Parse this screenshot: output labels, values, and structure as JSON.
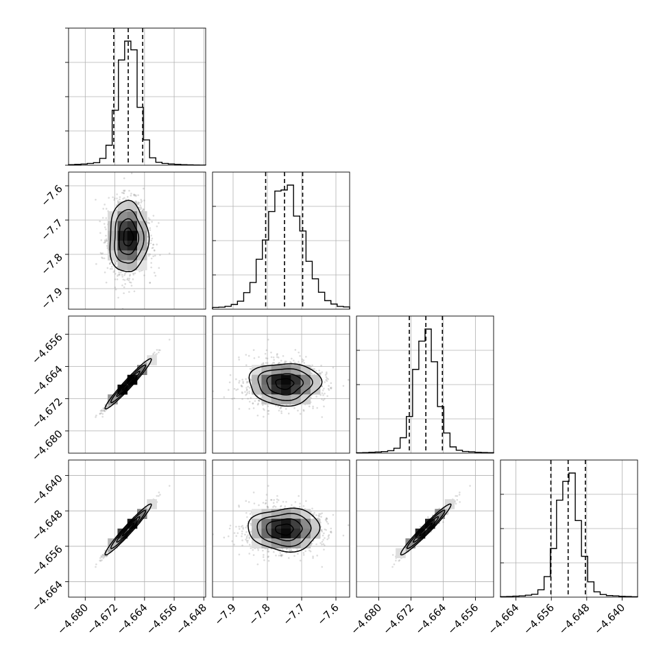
{
  "figure": {
    "background": "#ffffff",
    "line_color": "#000000",
    "grid_color": "#b0b0b0",
    "density_color": "#000000",
    "quantile_line_style": "dashed"
  },
  "chart_data": {
    "type": "corner",
    "grid": true,
    "parameters": [
      {
        "range": [
          -4.6845,
          -4.6475
        ],
        "ticks": [
          -4.68,
          -4.672,
          -4.664,
          -4.656,
          -4.648
        ],
        "tick_labels": [
          "−4.680",
          "−4.672",
          "−4.664",
          "−4.656",
          "−4.648"
        ],
        "quantiles": [
          -4.6723,
          -4.6684,
          -4.6645
        ],
        "hist_peak": -4.6684,
        "hist_sigma": 0.0026,
        "x_label": "",
        "y_label": ""
      },
      {
        "range": [
          -7.96,
          -7.56
        ],
        "ticks": [
          -7.9,
          -7.8,
          -7.7,
          -7.6
        ],
        "tick_labels": [
          "−7.9",
          "−7.8",
          "−7.7",
          "−7.6"
        ],
        "quantiles": [
          -7.805,
          -7.75,
          -7.697
        ],
        "hist_peak": -7.75,
        "hist_sigma": 0.052,
        "x_label": "",
        "y_label": ""
      },
      {
        "range": [
          -4.6855,
          -4.6515
        ],
        "ticks": [
          -4.68,
          -4.672,
          -4.664,
          -4.656
        ],
        "tick_labels": [
          "−4.680",
          "−4.672",
          "−4.664",
          "−4.656"
        ],
        "quantiles": [
          -4.6724,
          -4.6683,
          -4.6642
        ],
        "hist_peak": -4.6683,
        "hist_sigma": 0.0026,
        "x_label": "",
        "y_label": ""
      },
      {
        "range": [
          -4.6675,
          -4.6365
        ],
        "ticks": [
          -4.664,
          -4.656,
          -4.648,
          -4.64
        ],
        "tick_labels": [
          "−4.664",
          "−4.656",
          "−4.648",
          "−4.640"
        ],
        "quantiles": [
          -4.6561,
          -4.6522,
          -4.6483
        ],
        "hist_peak": -4.6522,
        "hist_sigma": 0.0024,
        "x_label": "",
        "y_label": ""
      }
    ],
    "correlations": [
      [
        1.0,
        0.0,
        0.97,
        0.97
      ],
      [
        0.0,
        1.0,
        0.0,
        0.0
      ],
      [
        0.97,
        0.0,
        1.0,
        0.97
      ],
      [
        0.97,
        0.0,
        0.97,
        1.0
      ]
    ]
  }
}
